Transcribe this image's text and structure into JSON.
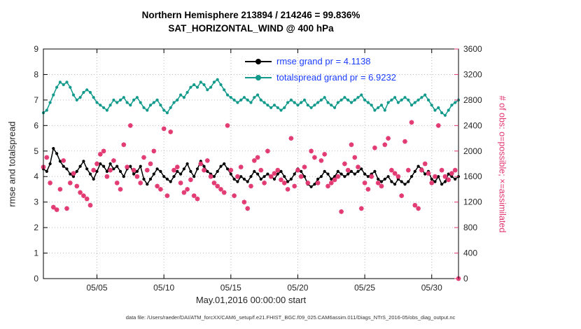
{
  "caption": "data file: /Users/raeder/DAI/ATM_forcXX/CAM6_setup/f.e21.FHIST_BGC.f09_025.CAM6assim.011/Diags_NTrS_2016-05/obs_diag_output.nc",
  "chart_data": {
    "type": "line",
    "title": "Northern Hemisphere 213894 / 214246 = 99.836%",
    "subtitle": "SAT_HORIZONTAL_WIND @ 400 hPa",
    "xlabel": "May.01,2016 00:00:00 start",
    "ylabel_left": "rmse and totalspread",
    "ylabel_right": "# of obs: o=possible; ×=assimilated",
    "xlim": [
      0,
      31
    ],
    "ylim_left": [
      0,
      9
    ],
    "ylim_right": [
      0,
      3600
    ],
    "x_start_day": 0,
    "x_step_days": 0.25,
    "grid": "dotted",
    "legend_position": "upper-right-inside",
    "xticks": [
      {
        "day": 4,
        "label": "05/05"
      },
      {
        "day": 9,
        "label": "05/10"
      },
      {
        "day": 14,
        "label": "05/15"
      },
      {
        "day": 19,
        "label": "05/20"
      },
      {
        "day": 24,
        "label": "05/25"
      },
      {
        "day": 29,
        "label": "05/30"
      }
    ],
    "yticks_left": [
      0,
      1,
      2,
      3,
      4,
      5,
      6,
      7,
      8,
      9
    ],
    "yticks_right": [
      0,
      400,
      800,
      1200,
      1600,
      2000,
      2400,
      2800,
      3200,
      3600
    ],
    "colors": {
      "rmse": "#000000",
      "totalspread": "#119a8b",
      "obs": "#e2366f",
      "legend_text": "#1a3cff",
      "axis_text": "#262626"
    },
    "series": [
      {
        "name": "rmse",
        "legend": "rmse grand pr = 4.1138",
        "axis": "left",
        "type": "line",
        "values": [
          4.3,
          4.2,
          4.5,
          5.1,
          4.9,
          4.6,
          4.4,
          4.3,
          4.1,
          4.0,
          4.2,
          4.4,
          4.6,
          4.3,
          4.1,
          3.9,
          4.2,
          4.5,
          4.4,
          4.2,
          4.5,
          4.3,
          4.4,
          4.2,
          4.0,
          4.3,
          4.4,
          4.1,
          4.2,
          4.4,
          3.9,
          3.7,
          3.9,
          4.1,
          4.3,
          4.2,
          4.0,
          3.9,
          3.8,
          4.0,
          4.2,
          4.1,
          4.3,
          4.5,
          4.2,
          4.0,
          4.3,
          4.6,
          4.4,
          4.2,
          4.1,
          4.0,
          4.2,
          4.4,
          4.5,
          4.3,
          4.1,
          3.9,
          3.8,
          4.0,
          3.9,
          3.8,
          4.0,
          4.2,
          4.1,
          3.9,
          4.0,
          4.1,
          4.0,
          3.9,
          4.1,
          4.2,
          4.0,
          3.8,
          3.9,
          4.1,
          4.3,
          4.2,
          4.0,
          3.7,
          3.6,
          3.7,
          3.9,
          4.0,
          4.2,
          4.1,
          3.9,
          4.0,
          4.2,
          4.1,
          4.0,
          4.1,
          4.2,
          4.1,
          4.2,
          4.3,
          4.1,
          4.0,
          4.1,
          4.2,
          3.9,
          3.8,
          3.9,
          4.0,
          3.8,
          3.7,
          3.9,
          3.8,
          3.7,
          3.8,
          4.0,
          4.2,
          4.4,
          4.3,
          4.1,
          4.2,
          3.9,
          3.8,
          4.0,
          3.7,
          3.8,
          4.1,
          4.0,
          3.9,
          4.0
        ]
      },
      {
        "name": "totalspread",
        "legend": "totalspread grand pr = 6.9232",
        "axis": "left",
        "type": "line",
        "values": [
          6.5,
          6.6,
          6.9,
          7.2,
          7.5,
          7.7,
          7.6,
          7.7,
          7.5,
          7.2,
          7.0,
          7.1,
          7.3,
          7.4,
          7.3,
          7.1,
          6.9,
          6.8,
          6.7,
          6.6,
          6.8,
          7.0,
          6.9,
          7.0,
          7.1,
          6.9,
          6.8,
          7.0,
          7.1,
          6.9,
          6.7,
          6.6,
          6.8,
          6.9,
          7.0,
          6.8,
          6.6,
          6.5,
          6.7,
          6.9,
          7.0,
          7.2,
          7.1,
          7.3,
          7.5,
          7.6,
          7.5,
          7.7,
          7.6,
          7.4,
          7.5,
          7.7,
          7.8,
          7.6,
          7.4,
          7.2,
          7.1,
          7.0,
          6.9,
          7.0,
          7.1,
          7.0,
          6.9,
          7.1,
          7.2,
          7.0,
          6.9,
          6.8,
          6.7,
          6.8,
          6.7,
          6.6,
          6.7,
          6.9,
          7.0,
          6.9,
          6.8,
          6.9,
          7.0,
          6.8,
          6.7,
          6.8,
          6.9,
          7.0,
          7.1,
          6.9,
          6.8,
          6.7,
          6.9,
          7.0,
          7.1,
          7.0,
          6.9,
          7.0,
          7.1,
          7.2,
          7.0,
          6.9,
          6.8,
          6.6,
          6.7,
          6.8,
          6.6,
          6.9,
          7.0,
          7.1,
          6.9,
          7.0,
          7.1,
          7.0,
          6.8,
          6.9,
          7.0,
          7.1,
          7.2,
          7.0,
          6.8,
          6.6,
          6.7,
          6.5,
          6.4,
          6.6,
          6.8,
          6.9,
          7.0
        ]
      },
      {
        "name": "obs_assimilated",
        "legend": null,
        "axis": "right",
        "type": "scatter",
        "marker": "asterisk+circle",
        "values": [
          1750,
          1900,
          1500,
          1120,
          1080,
          1400,
          1850,
          1100,
          1500,
          1650,
          1450,
          1350,
          1300,
          1250,
          1150,
          1700,
          1800,
          1950,
          2000,
          1600,
          1700,
          1850,
          1500,
          1400,
          2100,
          1750,
          2400,
          1700,
          1600,
          1500,
          1900,
          1700,
          1800,
          2000,
          1450,
          1400,
          2350,
          1300,
          2300,
          1700,
          1750,
          1500,
          1350,
          1400,
          1550,
          1300,
          1250,
          1800,
          1700,
          1850,
          1600,
          1500,
          1450,
          1400,
          1350,
          2400,
          1700,
          1300,
          1600,
          1750,
          1200,
          1100,
          1450,
          1850,
          1900,
          1700,
          1500,
          2000,
          1600,
          1650,
          1700,
          1550,
          1500,
          1400,
          2200,
          1450,
          1700,
          1600,
          1750,
          1500,
          2000,
          1900,
          1500,
          1850,
          1950,
          1450,
          1500,
          1550,
          1600,
          1050,
          1800,
          1700,
          2100,
          1900,
          1750,
          1100,
          1500,
          1400,
          1600,
          2050,
          1500,
          1450,
          2100,
          2200,
          1700,
          1650,
          1600,
          1300,
          2150,
          1700,
          2450,
          1150,
          1100,
          1700,
          1800,
          1650,
          1500,
          1600,
          2400,
          1700,
          1600,
          1550,
          1650,
          1700,
          0
        ]
      }
    ]
  }
}
